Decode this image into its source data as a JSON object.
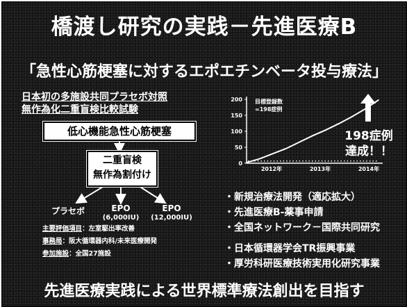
{
  "slide": {
    "title": "橋渡し研究の実践－先進医療B",
    "subtitle": "「急性心筋梗塞に対するエポエチンベータ投与療法」",
    "intro": [
      "日本初の多施設共同プラセボ対照",
      "無作為化二重盲検比較試験"
    ],
    "flow": {
      "box1": "低心機能急性心筋梗塞",
      "box2_line1": "二重盲検",
      "box2_line2": "無作為割付け",
      "arms": [
        {
          "name": "プラセボ",
          "dose": ""
        },
        {
          "name": "EPO",
          "dose": "(6,000IU)"
        },
        {
          "name": "EPO",
          "dose": "(12,000IU)"
        }
      ]
    },
    "notes": [
      {
        "label": "主要評価項目",
        "text": "：左室駆出率改善"
      },
      {
        "label": "事務局",
        "text": "：阪大循環器内科/未来医療開発"
      },
      {
        "label": "参加施設",
        "text": "：全国27施設"
      }
    ],
    "badge": [
      "198症例",
      "達成！！"
    ],
    "bullets": [
      "・新規治療法開発（適応拡大）",
      "・先進医療B-薬事申請",
      "・全国ネットワーク－国際共同研究",
      "・日本循環器学会TR振興事業",
      "・厚労科研医療技術実用化研究事業"
    ],
    "footer": "先進医療実践による世界標準療法創出を目指す"
  },
  "chart_data": {
    "type": "line",
    "annotation": [
      "目標登録数",
      "=198症例"
    ],
    "y_ticks": [
      0,
      50,
      100,
      150,
      200
    ],
    "ylim": [
      0,
      200
    ],
    "x_ticks": [
      "2012年",
      "2013年",
      "2014年"
    ],
    "x": [
      0,
      0.1,
      0.2,
      0.3,
      0.4,
      0.5,
      0.6,
      0.7,
      0.8,
      0.9,
      1.0
    ],
    "values": [
      2,
      14,
      30,
      46,
      66,
      86,
      104,
      124,
      146,
      170,
      198
    ],
    "target": 198,
    "colors": {
      "line": "#ffffff",
      "axes": "#ffffff"
    }
  }
}
